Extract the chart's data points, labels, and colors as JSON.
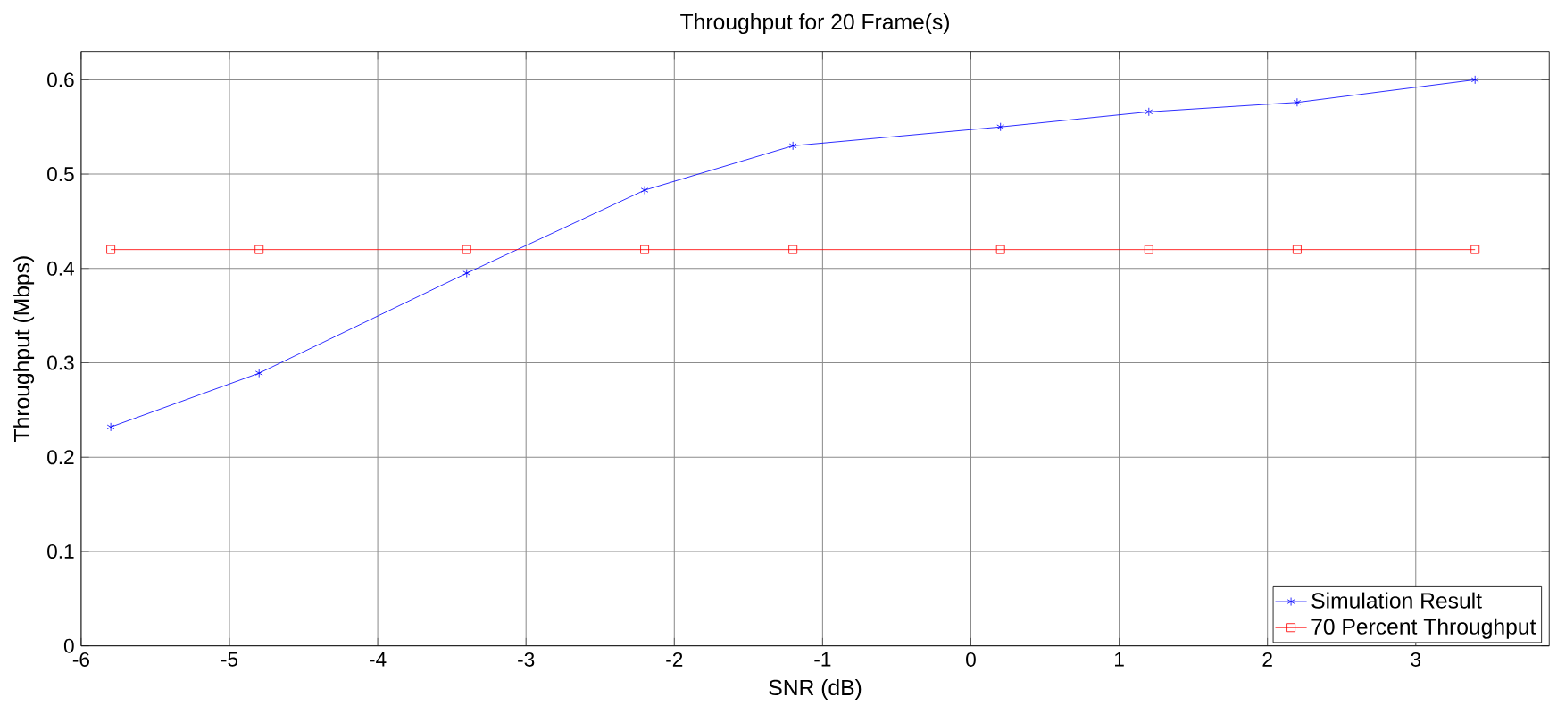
{
  "chart_data": {
    "type": "line",
    "title": "Throughput for 20 Frame(s)",
    "xlabel": "SNR (dB)",
    "ylabel": "Throughput (Mbps)",
    "x": [
      -5.8,
      -4.8,
      -3.4,
      -2.2,
      -1.2,
      0.2,
      1.2,
      2.2,
      3.4
    ],
    "series": [
      {
        "name": "Simulation Result",
        "color": "#0000ff",
        "marker": "cross",
        "values": [
          0.232,
          0.289,
          0.395,
          0.483,
          0.53,
          0.55,
          0.566,
          0.576,
          0.6
        ]
      },
      {
        "name": "70 Percent Throughput",
        "color": "#ff0000",
        "marker": "square",
        "values": [
          0.42,
          0.42,
          0.42,
          0.42,
          0.42,
          0.42,
          0.42,
          0.42,
          0.42
        ]
      }
    ],
    "xlim": [
      -6,
      3.9
    ],
    "ylim": [
      0,
      0.63
    ],
    "xticks": [
      -6,
      -5,
      -4,
      -3,
      -2,
      -1,
      0,
      1,
      2,
      3
    ],
    "yticks": [
      0,
      0.1,
      0.2,
      0.3,
      0.4,
      0.5,
      0.6
    ],
    "grid": true,
    "legend": "bottom right",
    "line_style": "solid"
  }
}
